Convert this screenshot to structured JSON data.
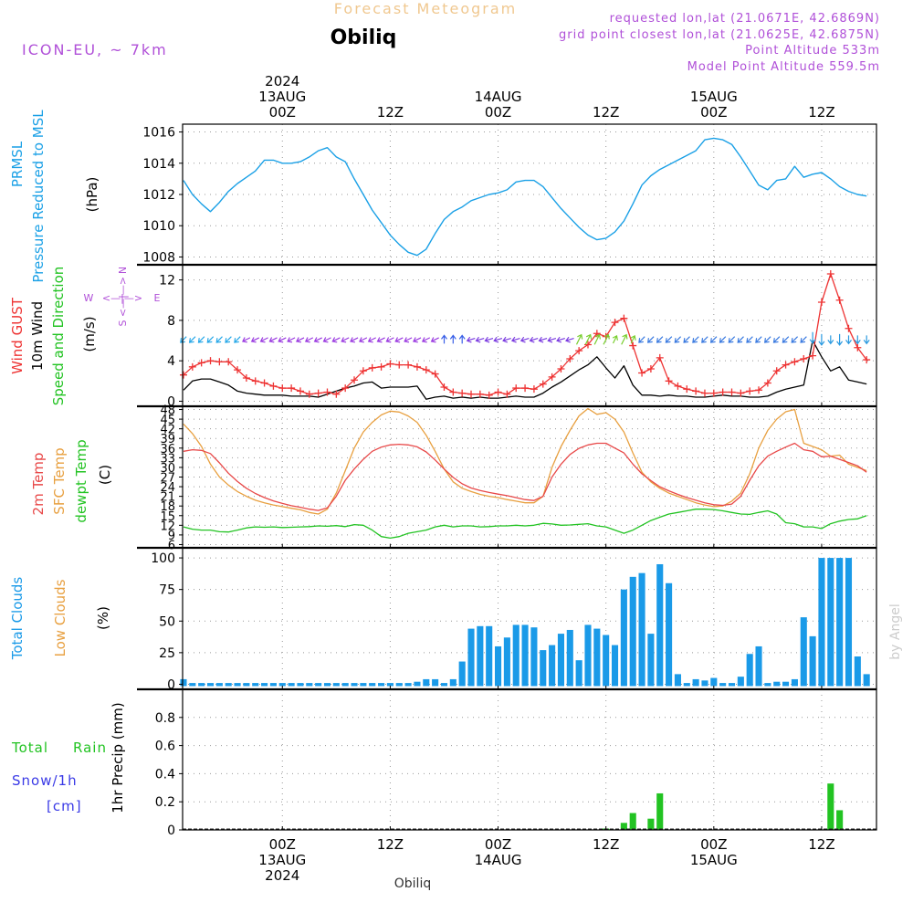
{
  "header": {
    "product_title": "Forecast Meteogram",
    "location": "Obiliq",
    "model": "ICON-EU, ~ 7km",
    "requested": "requested lon,lat (21.0671E, 42.6869N)",
    "gridpoint": "grid point closest lon,lat (21.0625E, 42.6875N)",
    "point_alt": "Point Altitude 533m",
    "model_alt": "Model Point Altitude 559.5m",
    "credit": "by Angel",
    "footer_location": "Obiliq"
  },
  "colors": {
    "pressure": "#1aa0e6",
    "gust": "#ee3333",
    "wind": "#000000",
    "t2m": "#e84848",
    "sfc": "#e8a040",
    "dewpt": "#22c322",
    "clouds": "#1a9ae8",
    "rain": "#22c322",
    "snow": "#3a3ae6",
    "violet": "#b050d8"
  },
  "time_axis": {
    "top_labels": [
      {
        "t": 0,
        "lines": [
          "2024",
          "13AUG",
          "00Z"
        ]
      },
      {
        "t": 12,
        "lines": [
          "12Z"
        ]
      },
      {
        "t": 24,
        "lines": [
          "14AUG",
          "00Z"
        ]
      },
      {
        "t": 36,
        "lines": [
          "12Z"
        ]
      },
      {
        "t": 48,
        "lines": [
          "15AUG",
          "00Z"
        ]
      },
      {
        "t": 60,
        "lines": [
          "12Z"
        ]
      }
    ],
    "bottom_labels": [
      {
        "t": 0,
        "lines": [
          "00Z",
          "13AUG",
          "2024"
        ]
      },
      {
        "t": 12,
        "lines": [
          "12Z"
        ]
      },
      {
        "t": 24,
        "lines": [
          "00Z",
          "14AUG"
        ]
      },
      {
        "t": 36,
        "lines": [
          "12Z"
        ]
      },
      {
        "t": 48,
        "lines": [
          "00Z",
          "15AUG"
        ]
      },
      {
        "t": 60,
        "lines": [
          "12Z"
        ]
      }
    ]
  },
  "chart_data": [
    {
      "type": "line",
      "panel": "pressure",
      "labels": [
        "PRMSL",
        "Pressure Reduced to MSL",
        "(hPa)"
      ],
      "x": [
        -11,
        -10,
        -9,
        -8,
        -7,
        -6,
        -5,
        -4,
        -3,
        -2,
        -1,
        0,
        1,
        2,
        3,
        4,
        5,
        6,
        7,
        8,
        9,
        10,
        11,
        12,
        13,
        14,
        15,
        16,
        17,
        18,
        19,
        20,
        21,
        22,
        23,
        24,
        25,
        26,
        27,
        28,
        29,
        30,
        31,
        32,
        33,
        34,
        35,
        36,
        37,
        38,
        39,
        40,
        41,
        42,
        43,
        44,
        45,
        46,
        47,
        48,
        49,
        50,
        51,
        52,
        53,
        54,
        55,
        56,
        57,
        58,
        59,
        60,
        61,
        62,
        63,
        64,
        65
      ],
      "y": [
        1012.9,
        1012.0,
        1011.4,
        1010.9,
        1011.5,
        1012.2,
        1012.7,
        1013.1,
        1013.5,
        1014.2,
        1014.2,
        1014.0,
        1014.0,
        1014.1,
        1014.4,
        1014.8,
        1015.0,
        1014.4,
        1014.1,
        1013.0,
        1012.0,
        1011.0,
        1010.2,
        1009.4,
        1008.8,
        1008.3,
        1008.1,
        1008.5,
        1009.5,
        1010.4,
        1010.9,
        1011.2,
        1011.6,
        1011.8,
        1012.0,
        1012.1,
        1012.3,
        1012.8,
        1012.9,
        1012.9,
        1012.5,
        1011.8,
        1011.1,
        1010.5,
        1009.9,
        1009.4,
        1009.1,
        1009.2,
        1009.6,
        1010.3,
        1011.4,
        1012.6,
        1013.2,
        1013.6,
        1013.9,
        1014.2,
        1014.5,
        1014.8,
        1015.5,
        1015.6,
        1015.5,
        1015.2,
        1014.4,
        1013.5,
        1012.6,
        1012.3,
        1012.9,
        1013.0,
        1013.8,
        1013.1,
        1013.3,
        1013.4,
        1013.0,
        1012.5,
        1012.2,
        1012.0,
        1011.9
      ],
      "ylim": [
        1007.5,
        1016.5
      ],
      "yticks": [
        1008,
        1010,
        1012,
        1014,
        1016
      ]
    },
    {
      "type": "line",
      "panel": "wind",
      "labels": {
        "gust": "Wind GUST",
        "wind": "10m Wind",
        "dir": "Speed and Direction",
        "unit": "(m/s)"
      },
      "compass": {
        "n": "N",
        "s": "S",
        "w": "W",
        "e": "E"
      },
      "x": [
        -11,
        -10,
        -9,
        -8,
        -7,
        -6,
        -5,
        -4,
        -3,
        -2,
        -1,
        0,
        1,
        2,
        3,
        4,
        5,
        6,
        7,
        8,
        9,
        10,
        11,
        12,
        13,
        14,
        15,
        16,
        17,
        18,
        19,
        20,
        21,
        22,
        23,
        24,
        25,
        26,
        27,
        28,
        29,
        30,
        31,
        32,
        33,
        34,
        35,
        36,
        37,
        38,
        39,
        40,
        41,
        42,
        43,
        44,
        45,
        46,
        47,
        48,
        49,
        50,
        51,
        52,
        53,
        54,
        55,
        56,
        57,
        58,
        59,
        60,
        61,
        62,
        63,
        64,
        65
      ],
      "gust": [
        2.6,
        3.4,
        3.8,
        4.0,
        3.9,
        3.9,
        3.1,
        2.3,
        2.0,
        1.8,
        1.5,
        1.3,
        1.3,
        1.0,
        0.7,
        0.8,
        0.9,
        0.7,
        1.3,
        2.1,
        3.0,
        3.3,
        3.4,
        3.7,
        3.6,
        3.6,
        3.4,
        3.1,
        2.7,
        1.4,
        0.9,
        0.8,
        0.7,
        0.7,
        0.6,
        0.9,
        0.7,
        1.3,
        1.3,
        1.2,
        1.7,
        2.4,
        3.2,
        4.2,
        5.0,
        5.6,
        6.7,
        6.4,
        7.8,
        8.2,
        5.5,
        2.8,
        3.2,
        4.3,
        2.0,
        1.5,
        1.2,
        1.0,
        0.8,
        0.8,
        0.9,
        0.9,
        0.8,
        1.0,
        1.1,
        1.8,
        3.0,
        3.6,
        3.9,
        4.2,
        4.5,
        9.8,
        12.6,
        10.0,
        7.2,
        5.3,
        4.1
      ],
      "wind": [
        1.1,
        2.0,
        2.2,
        2.2,
        1.9,
        1.6,
        1.0,
        0.8,
        0.7,
        0.6,
        0.6,
        0.6,
        0.5,
        0.5,
        0.5,
        0.4,
        0.7,
        1.0,
        1.3,
        1.5,
        1.8,
        1.9,
        1.3,
        1.4,
        1.4,
        1.4,
        1.5,
        0.2,
        0.4,
        0.5,
        0.3,
        0.4,
        0.3,
        0.4,
        0.3,
        0.3,
        0.4,
        0.5,
        0.4,
        0.4,
        0.8,
        1.4,
        1.9,
        2.5,
        3.1,
        3.6,
        4.4,
        3.3,
        2.3,
        3.5,
        1.6,
        0.6,
        0.6,
        0.5,
        0.6,
        0.5,
        0.5,
        0.4,
        0.4,
        0.5,
        0.6,
        0.5,
        0.5,
        0.4,
        0.4,
        0.5,
        0.9,
        1.2,
        1.4,
        1.6,
        6.0,
        4.4,
        3.0,
        3.4,
        2.1,
        1.9,
        1.7
      ],
      "ylim": [
        -0.5,
        13.5
      ],
      "yticks": [
        0,
        4,
        8,
        12
      ]
    },
    {
      "type": "line",
      "panel": "temperature",
      "labels": {
        "t2m": "2m Temp",
        "sfc": "SFC Temp",
        "dewpt": "dewpt Temp",
        "unit": "(C)"
      },
      "x": [
        -11,
        -10,
        -9,
        -8,
        -7,
        -6,
        -5,
        -4,
        -3,
        -2,
        -1,
        0,
        1,
        2,
        3,
        4,
        5,
        6,
        7,
        8,
        9,
        10,
        11,
        12,
        13,
        14,
        15,
        16,
        17,
        18,
        19,
        20,
        21,
        22,
        23,
        24,
        25,
        26,
        27,
        28,
        29,
        30,
        31,
        32,
        33,
        34,
        35,
        36,
        37,
        38,
        39,
        40,
        41,
        42,
        43,
        44,
        45,
        46,
        47,
        48,
        49,
        50,
        51,
        52,
        53,
        54,
        55,
        56,
        57,
        58,
        59,
        60,
        61,
        62,
        63,
        64,
        65
      ],
      "t2m": [
        35.0,
        35.5,
        35.3,
        34.3,
        31.4,
        28.2,
        25.6,
        23.5,
        21.9,
        20.6,
        19.6,
        18.8,
        18.1,
        17.6,
        17.0,
        16.6,
        17.4,
        21.0,
        26.0,
        29.5,
        32.5,
        35.0,
        36.3,
        37.0,
        37.2,
        37.0,
        36.4,
        34.8,
        32.3,
        29.5,
        26.9,
        24.9,
        23.6,
        22.8,
        22.2,
        21.7,
        21.2,
        20.6,
        20.0,
        19.7,
        21.0,
        27.0,
        31.0,
        34.0,
        35.9,
        37.0,
        37.5,
        37.5,
        36.0,
        34.5,
        31.0,
        28.0,
        25.9,
        24.0,
        22.7,
        21.6,
        20.6,
        19.8,
        19.0,
        18.4,
        18.2,
        18.6,
        21.0,
        26.0,
        30.5,
        33.5,
        35.0,
        36.3,
        37.5,
        35.5,
        35.0,
        33.3,
        33.5,
        32.5,
        31.5,
        30.5,
        28.5
      ],
      "sfc": [
        43.5,
        40.5,
        36.5,
        31.0,
        27.0,
        24.5,
        22.5,
        21.0,
        19.8,
        19.0,
        18.3,
        17.8,
        17.3,
        16.8,
        16.0,
        15.5,
        17.0,
        22.0,
        29.0,
        36.0,
        41.0,
        44.0,
        46.3,
        47.5,
        47.2,
        46.0,
        44.0,
        40.0,
        35.0,
        29.5,
        25.5,
        23.5,
        22.5,
        21.6,
        21.0,
        20.6,
        20.0,
        19.5,
        19.0,
        19.0,
        21.0,
        30.0,
        36.5,
        41.5,
        46.0,
        48.3,
        46.5,
        47.0,
        45.0,
        41.0,
        34.5,
        28.5,
        25.5,
        23.5,
        22.0,
        21.0,
        20.0,
        19.0,
        18.3,
        17.8,
        18.0,
        19.5,
        22.0,
        28.0,
        36.0,
        41.5,
        45.0,
        47.3,
        48.0,
        37.5,
        36.5,
        35.5,
        33.5,
        33.8,
        31.0,
        30.0,
        29.0
      ],
      "dewpt": [
        11.5,
        10.8,
        10.5,
        10.5,
        10.0,
        9.9,
        10.5,
        11.2,
        11.5,
        11.4,
        11.5,
        11.3,
        11.4,
        11.5,
        11.6,
        11.8,
        11.7,
        11.9,
        11.6,
        12.2,
        12.0,
        10.5,
        8.5,
        8.0,
        8.5,
        9.5,
        10.0,
        10.5,
        11.5,
        12.0,
        11.5,
        11.8,
        11.8,
        11.5,
        11.6,
        11.8,
        11.8,
        12.0,
        11.8,
        12.0,
        12.6,
        12.4,
        12.0,
        12.1,
        12.3,
        12.5,
        11.8,
        11.5,
        10.5,
        9.5,
        10.5,
        12.0,
        13.5,
        14.5,
        15.5,
        16.0,
        16.5,
        17.0,
        17.0,
        16.9,
        16.5,
        16.0,
        15.5,
        15.4,
        16.0,
        16.5,
        15.5,
        12.8,
        12.5,
        11.5,
        11.5,
        11.0,
        12.5,
        13.3,
        13.8,
        14.0,
        15.0
      ],
      "ylim": [
        5,
        49
      ],
      "yticks": [
        6,
        9,
        12,
        15,
        18,
        21,
        24,
        27,
        30,
        33,
        36,
        39,
        42,
        45,
        48
      ]
    },
    {
      "type": "bar",
      "panel": "clouds",
      "labels": {
        "total": "Total Clouds",
        "low": "Low Clouds",
        "unit": "(%)"
      },
      "x": [
        -11,
        -10,
        -9,
        -8,
        -7,
        -6,
        -5,
        -4,
        -3,
        -2,
        -1,
        0,
        1,
        2,
        3,
        4,
        5,
        6,
        7,
        8,
        9,
        10,
        11,
        12,
        13,
        14,
        15,
        16,
        17,
        18,
        19,
        20,
        21,
        22,
        23,
        24,
        25,
        26,
        27,
        28,
        29,
        30,
        31,
        32,
        33,
        34,
        35,
        36,
        37,
        38,
        39,
        40,
        41,
        42,
        43,
        44,
        45,
        46,
        47,
        48,
        49,
        50,
        51,
        52,
        53,
        54,
        55,
        56,
        57,
        58,
        59,
        60,
        61,
        62,
        63,
        64,
        65
      ],
      "values": [
        4,
        1,
        1,
        1,
        1,
        1,
        1,
        1,
        1,
        1,
        1,
        1,
        1,
        1,
        1,
        1,
        1,
        1,
        1,
        1,
        1,
        1,
        1,
        1,
        1,
        1,
        2,
        4,
        4,
        1,
        4,
        18,
        44,
        46,
        46,
        30,
        37,
        47,
        47,
        45,
        27,
        31,
        40,
        43,
        19,
        47,
        44,
        39,
        31,
        75,
        85,
        88,
        40,
        95,
        80,
        8,
        1,
        4,
        3,
        5,
        1,
        1,
        6,
        24,
        30,
        1,
        2,
        2,
        4,
        53,
        38,
        100,
        100,
        100,
        100,
        22,
        8
      ],
      "ylim": [
        -4,
        108
      ],
      "yticks": [
        0,
        25,
        50,
        75,
        100
      ]
    },
    {
      "type": "bar",
      "panel": "precip",
      "labels": {
        "total": "Total",
        "rain": "Rain",
        "snow": "Snow/1h",
        "snow_unit": "[cm]",
        "unit": "1hr Precip (mm)"
      },
      "x": [
        36,
        37,
        38,
        39,
        40,
        41,
        42,
        61,
        62
      ],
      "values": [
        0.01,
        0.0,
        0.05,
        0.12,
        0.0,
        0.08,
        0.26,
        0.33,
        0.14
      ],
      "ylim": [
        0,
        1.0
      ],
      "yticks": [
        0,
        0.2,
        0.4,
        0.6,
        0.8
      ]
    }
  ]
}
